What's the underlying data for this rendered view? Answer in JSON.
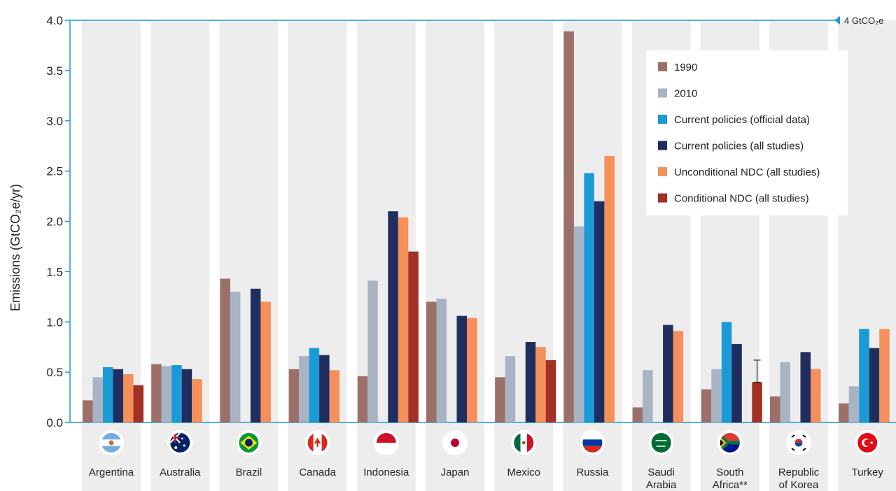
{
  "chart_data": {
    "type": "bar",
    "ylabel": "Emissions (GtCO₂e/yr)",
    "ylim": [
      0,
      4.0
    ],
    "yticks": [
      "0.0",
      "0.5",
      "1.0",
      "1.5",
      "2.0",
      "2.5",
      "3.0",
      "3.5",
      "4.0"
    ],
    "reference_line": {
      "value": 4.0,
      "label": "4 GtCO₂e"
    },
    "grid": false,
    "legend_position": "top-right",
    "categories": [
      [
        "Argentina"
      ],
      [
        "Australia"
      ],
      [
        "Brazil"
      ],
      [
        "Canada"
      ],
      [
        "Indonesia"
      ],
      [
        "Japan"
      ],
      [
        "Mexico"
      ],
      [
        "Russia"
      ],
      [
        "Saudi",
        "Arabia"
      ],
      [
        "South",
        "Africa**"
      ],
      [
        "Republic",
        "of Korea"
      ],
      [
        "Turkey"
      ]
    ],
    "series": [
      {
        "name": "1990",
        "color": "#9c7068",
        "values": [
          0.22,
          0.58,
          1.43,
          0.53,
          0.46,
          1.2,
          0.45,
          3.89,
          0.15,
          0.33,
          0.26,
          0.19
        ]
      },
      {
        "name": "2010",
        "color": "#a8b4c4",
        "values": [
          0.45,
          0.56,
          1.3,
          0.66,
          1.41,
          1.23,
          0.66,
          1.95,
          0.52,
          0.53,
          0.6,
          0.36
        ]
      },
      {
        "name": "Current policies (official data)",
        "color": "#1a9ad6",
        "values": [
          0.55,
          0.57,
          null,
          0.74,
          null,
          null,
          null,
          2.48,
          null,
          1.0,
          null,
          0.93
        ]
      },
      {
        "name": "Current policies (all studies)",
        "color": "#1f2e5e",
        "values": [
          0.53,
          0.53,
          1.33,
          0.67,
          2.1,
          1.06,
          0.8,
          2.2,
          0.97,
          0.78,
          0.7,
          0.74
        ]
      },
      {
        "name": "Unconditional NDC (all studies)",
        "color": "#f5905a",
        "values": [
          0.48,
          0.43,
          1.2,
          0.52,
          2.04,
          1.04,
          0.75,
          2.65,
          0.91,
          null,
          0.53,
          0.93
        ]
      },
      {
        "name": "Conditional NDC (all studies)",
        "color": "#a33025",
        "values": [
          0.37,
          null,
          null,
          null,
          1.7,
          null,
          0.62,
          null,
          null,
          0.4,
          null,
          null
        ]
      }
    ],
    "error_bars": [
      {
        "category_index": 9,
        "series_index": 5,
        "low": 0.4,
        "high": 0.62
      }
    ]
  },
  "flags": [
    {
      "icon": "argentina-flag-icon"
    },
    {
      "icon": "australia-flag-icon"
    },
    {
      "icon": "brazil-flag-icon"
    },
    {
      "icon": "canada-flag-icon"
    },
    {
      "icon": "indonesia-flag-icon"
    },
    {
      "icon": "japan-flag-icon"
    },
    {
      "icon": "mexico-flag-icon"
    },
    {
      "icon": "russia-flag-icon"
    },
    {
      "icon": "saudi-arabia-flag-icon"
    },
    {
      "icon": "south-africa-flag-icon"
    },
    {
      "icon": "republic-of-korea-flag-icon"
    },
    {
      "icon": "turkey-flag-icon"
    }
  ],
  "colors": {
    "axis": "#1a9ad6",
    "column_bg": "#ededed"
  }
}
